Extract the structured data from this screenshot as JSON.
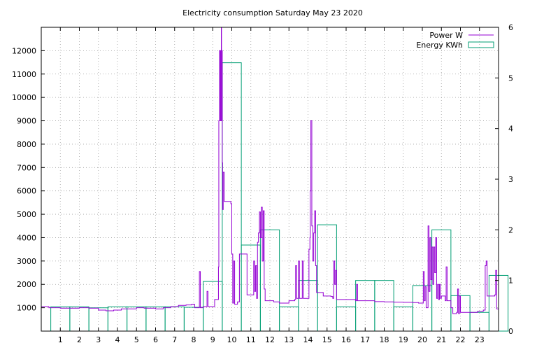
{
  "chart_data": {
    "type": "line",
    "title": "Electricity consumption Saturday May 23 2020",
    "xlim": [
      0,
      24
    ],
    "ylim": [
      0,
      13000
    ],
    "y2lim": [
      0,
      6
    ],
    "grid": true,
    "legend_position": "top-right",
    "x_ticks": [
      1,
      2,
      3,
      4,
      5,
      6,
      7,
      8,
      9,
      10,
      11,
      12,
      13,
      14,
      15,
      16,
      17,
      18,
      19,
      20,
      21,
      22,
      23
    ],
    "y_ticks": [
      1000,
      2000,
      3000,
      4000,
      5000,
      6000,
      7000,
      8000,
      9000,
      10000,
      11000,
      12000
    ],
    "y2_ticks": [
      0,
      1,
      2,
      3,
      4,
      5,
      6
    ],
    "colors": {
      "power": "#9400d3",
      "energy": "#009e73"
    },
    "series": [
      {
        "name": "Power W",
        "axis": "y",
        "style": "line",
        "points": [
          [
            0.0,
            1050
          ],
          [
            0.4,
            1000
          ],
          [
            1.0,
            980
          ],
          [
            1.5,
            980
          ],
          [
            2.0,
            1000
          ],
          [
            2.5,
            980
          ],
          [
            3.0,
            900
          ],
          [
            3.4,
            870
          ],
          [
            3.8,
            900
          ],
          [
            4.2,
            950
          ],
          [
            4.6,
            950
          ],
          [
            5.0,
            1000
          ],
          [
            5.4,
            980
          ],
          [
            6.0,
            950
          ],
          [
            6.4,
            1000
          ],
          [
            6.8,
            1050
          ],
          [
            7.2,
            1100
          ],
          [
            7.6,
            1120
          ],
          [
            7.9,
            1150
          ],
          [
            8.05,
            1000
          ],
          [
            8.3,
            2550
          ],
          [
            8.35,
            1000
          ],
          [
            8.5,
            1050
          ],
          [
            8.7,
            1700
          ],
          [
            8.75,
            1050
          ],
          [
            9.0,
            1050
          ],
          [
            9.1,
            1350
          ],
          [
            9.25,
            1350
          ],
          [
            9.3,
            2750
          ],
          [
            9.32,
            9000
          ],
          [
            9.35,
            12000
          ],
          [
            9.4,
            9000
          ],
          [
            9.42,
            12000
          ],
          [
            9.45,
            13000
          ],
          [
            9.46,
            9000
          ],
          [
            9.48,
            12000
          ],
          [
            9.5,
            7200
          ],
          [
            9.52,
            5200
          ],
          [
            9.55,
            6800
          ],
          [
            9.6,
            5550
          ],
          [
            9.75,
            5550
          ],
          [
            9.95,
            5450
          ],
          [
            10.0,
            3300
          ],
          [
            10.05,
            1200
          ],
          [
            10.1,
            3000
          ],
          [
            10.15,
            1150
          ],
          [
            10.3,
            1250
          ],
          [
            10.4,
            3300
          ],
          [
            10.7,
            3300
          ],
          [
            10.8,
            1550
          ],
          [
            11.1,
            1550
          ],
          [
            11.15,
            3000
          ],
          [
            11.2,
            1700
          ],
          [
            11.25,
            2800
          ],
          [
            11.3,
            1400
          ],
          [
            11.35,
            3800
          ],
          [
            11.4,
            4200
          ],
          [
            11.45,
            5100
          ],
          [
            11.5,
            4000
          ],
          [
            11.55,
            5300
          ],
          [
            11.6,
            3000
          ],
          [
            11.65,
            5150
          ],
          [
            11.7,
            1800
          ],
          [
            11.75,
            1300
          ],
          [
            12.2,
            1250
          ],
          [
            12.5,
            1200
          ],
          [
            13.0,
            1300
          ],
          [
            13.3,
            1350
          ],
          [
            13.35,
            2800
          ],
          [
            13.4,
            1400
          ],
          [
            13.5,
            3000
          ],
          [
            13.55,
            1400
          ],
          [
            13.7,
            3000
          ],
          [
            13.75,
            1400
          ],
          [
            14.0,
            1400
          ],
          [
            14.05,
            3500
          ],
          [
            14.1,
            4000
          ],
          [
            14.12,
            6000
          ],
          [
            14.15,
            9000
          ],
          [
            14.2,
            4500
          ],
          [
            14.25,
            3000
          ],
          [
            14.3,
            4200
          ],
          [
            14.35,
            5150
          ],
          [
            14.4,
            2800
          ],
          [
            14.45,
            1650
          ],
          [
            14.7,
            1650
          ],
          [
            14.8,
            1500
          ],
          [
            15.2,
            1480
          ],
          [
            15.3,
            1400
          ],
          [
            15.35,
            3000
          ],
          [
            15.4,
            2000
          ],
          [
            15.45,
            2600
          ],
          [
            15.5,
            1350
          ],
          [
            16.0,
            1350
          ],
          [
            16.5,
            1300
          ],
          [
            16.55,
            2000
          ],
          [
            16.6,
            1300
          ],
          [
            17.0,
            1300
          ],
          [
            17.5,
            1260
          ],
          [
            18.0,
            1250
          ],
          [
            18.5,
            1240
          ],
          [
            19.0,
            1230
          ],
          [
            19.5,
            1220
          ],
          [
            19.8,
            1200
          ],
          [
            20.0,
            1200
          ],
          [
            20.05,
            2550
          ],
          [
            20.1,
            1300
          ],
          [
            20.15,
            1900
          ],
          [
            20.2,
            1000
          ],
          [
            20.3,
            4500
          ],
          [
            20.35,
            1700
          ],
          [
            20.4,
            4000
          ],
          [
            20.45,
            2200
          ],
          [
            20.5,
            3600
          ],
          [
            20.55,
            2000
          ],
          [
            20.6,
            3600
          ],
          [
            20.65,
            2500
          ],
          [
            20.7,
            4000
          ],
          [
            20.75,
            1400
          ],
          [
            20.8,
            2000
          ],
          [
            20.85,
            1350
          ],
          [
            20.9,
            2000
          ],
          [
            20.95,
            1400
          ],
          [
            21.0,
            1500
          ],
          [
            21.2,
            1300
          ],
          [
            21.25,
            2750
          ],
          [
            21.3,
            1300
          ],
          [
            21.5,
            1000
          ],
          [
            21.6,
            750
          ],
          [
            21.8,
            800
          ],
          [
            21.85,
            1800
          ],
          [
            21.9,
            750
          ],
          [
            21.95,
            1500
          ],
          [
            22.0,
            800
          ],
          [
            22.5,
            800
          ],
          [
            22.9,
            850
          ],
          [
            23.2,
            900
          ],
          [
            23.3,
            2800
          ],
          [
            23.35,
            3000
          ],
          [
            23.4,
            1500
          ],
          [
            23.8,
            1550
          ],
          [
            23.85,
            2600
          ],
          [
            23.9,
            950
          ],
          [
            24.0,
            950
          ]
        ]
      },
      {
        "name": "Energy KWh",
        "axis": "y2",
        "style": "boxes",
        "values": [
          0.48,
          0.48,
          0.46,
          0.48,
          0.48,
          0.48,
          0.48,
          0.47,
          0.98,
          5.3,
          1.7,
          2.0,
          0.48,
          1.0,
          2.1,
          0.48,
          1.0,
          1.0,
          0.48,
          0.9,
          2.0,
          0.7,
          0.37,
          1.1
        ]
      }
    ]
  }
}
